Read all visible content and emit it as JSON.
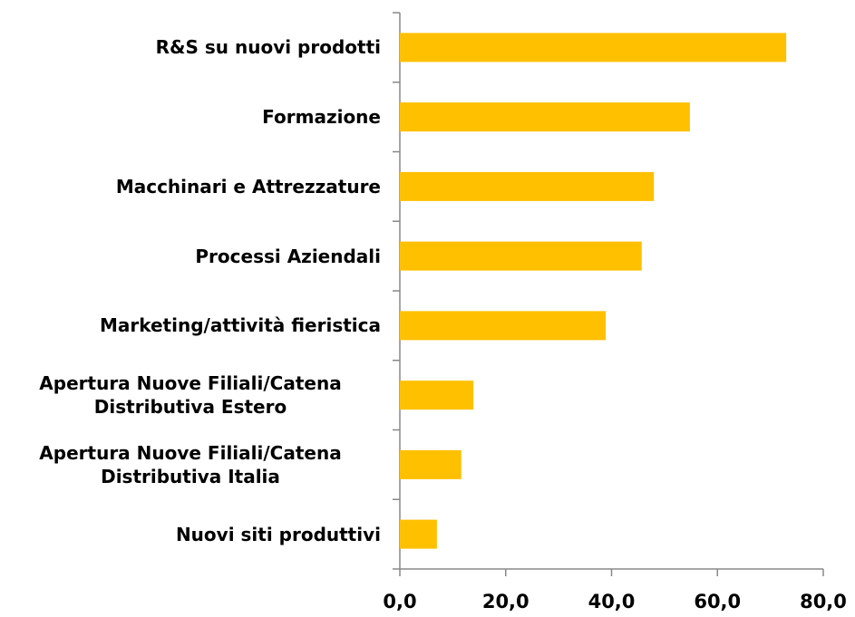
{
  "chart_data": {
    "type": "bar",
    "orientation": "horizontal",
    "categories": [
      "R&S su nuovi prodotti",
      "Formazione",
      "Macchinari e Attrezzature",
      "Processi Aziendali",
      "Marketing/attività fieristica",
      "Apertura Nuove Filiali/Catena Distributiva Estero",
      "Apertura Nuove Filiali/Catena Distributiva Italia",
      "Nuovi siti produttivi"
    ],
    "values": [
      73.0,
      54.8,
      48.0,
      45.7,
      38.9,
      13.9,
      11.6,
      7.0
    ],
    "color": "#ffc000",
    "xlim": [
      0,
      80
    ],
    "xticks": [
      {
        "value": 0,
        "label": "0,0"
      },
      {
        "value": 20,
        "label": "20,0"
      },
      {
        "value": 40,
        "label": "40,0"
      },
      {
        "value": 60,
        "label": "60,0"
      },
      {
        "value": 80,
        "label": "80,0"
      }
    ],
    "grid": false
  }
}
